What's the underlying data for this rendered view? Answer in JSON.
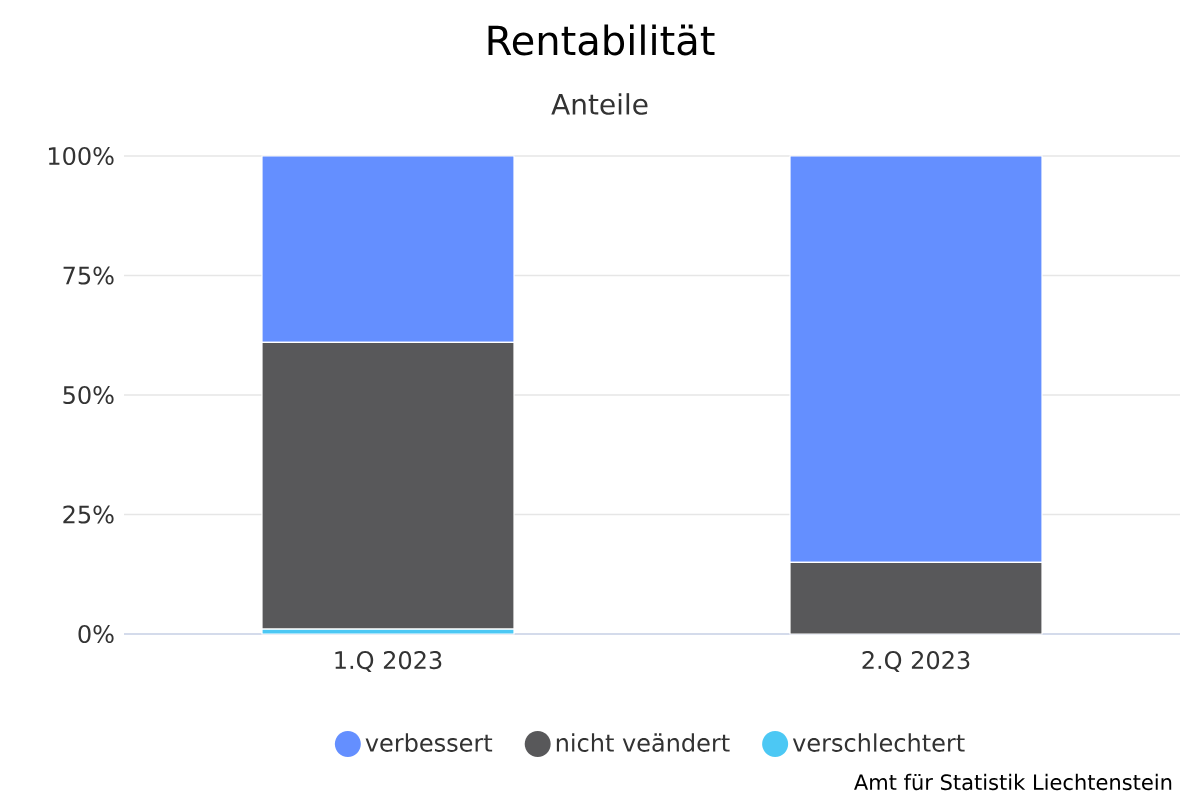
{
  "chart_data": {
    "type": "bar",
    "title": "Rentabilität",
    "subtitle": "Anteile",
    "categories": [
      "1.Q 2023",
      "2.Q 2023"
    ],
    "series": [
      {
        "name": "verschlechtert",
        "color": "#4cc8f4",
        "values": [
          1,
          0
        ]
      },
      {
        "name": "nicht veändert",
        "color": "#58585a",
        "values": [
          60,
          15
        ]
      },
      {
        "name": "verbessert",
        "color": "#648fff",
        "values": [
          39,
          85
        ]
      }
    ],
    "stacked": true,
    "ylim": [
      0,
      100
    ],
    "yticks": [
      {
        "value": 0,
        "label": "0%"
      },
      {
        "value": 25,
        "label": "25%"
      },
      {
        "value": 50,
        "label": "50%"
      },
      {
        "value": 75,
        "label": "75%"
      },
      {
        "value": 100,
        "label": "100%"
      }
    ],
    "grid": "y",
    "legend": "bottom",
    "annotations": [
      "Amt für Statistik Liechtenstein"
    ]
  }
}
